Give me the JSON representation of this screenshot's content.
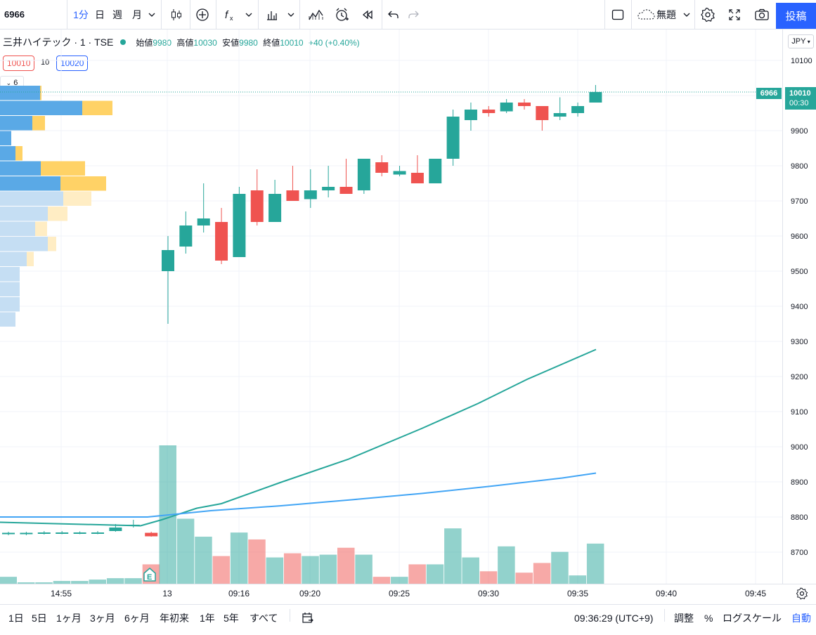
{
  "toolbar": {
    "symbol": "6966",
    "intervals": [
      "1分",
      "日",
      "週",
      "月"
    ],
    "cloud_label": "無題",
    "post_label": "投稿"
  },
  "legend": {
    "title": "三井ハイテック · 1 · TSE",
    "open_label": "始値",
    "open": "9980",
    "high_label": "高値",
    "high": "10030",
    "low_label": "安値",
    "low": "9980",
    "close_label": "終値",
    "close": "10010",
    "change": "+40 (+0.40%)"
  },
  "bid": "10010",
  "spread": "10",
  "ask": "10020",
  "volume_profile_count": "6",
  "currency": "JPY",
  "price_tag": {
    "symbol": "6966",
    "price": "10010",
    "countdown": "00:30"
  },
  "bottom": {
    "ranges": [
      "1日",
      "5日",
      "1ヶ月",
      "3ヶ月",
      "6ヶ月",
      "年初来",
      "1年",
      "5年",
      "すべて"
    ],
    "time": "09:36:29 (UTC+9)",
    "adjust": "調整",
    "percent": "%",
    "log": "ログスケール",
    "auto": "自動"
  },
  "colors": {
    "up": "#26a69a",
    "down": "#ef5350",
    "ma_fast": "#26a69a",
    "ma_slow": "#42a5f5",
    "accent": "#2962ff"
  },
  "chart_data": {
    "type": "candlestick",
    "x_tick_labels": [
      "14:55",
      "13",
      "09:16",
      "09:20",
      "09:25",
      "09:30",
      "09:35",
      "09:40",
      "09:45"
    ],
    "y_tick_labels": [
      "10100",
      "10000",
      "9900",
      "9800",
      "9700",
      "9600",
      "9500",
      "9400",
      "9300",
      "9200",
      "9100",
      "9000",
      "8900",
      "8800",
      "8700"
    ],
    "ylim": [
      8610,
      10190
    ],
    "candles": [
      {
        "o": 8752,
        "h": 8758,
        "l": 8748,
        "c": 8755
      },
      {
        "o": 8752,
        "h": 8758,
        "l": 8748,
        "c": 8755
      },
      {
        "o": 8754,
        "h": 8760,
        "l": 8750,
        "c": 8756
      },
      {
        "o": 8755,
        "h": 8760,
        "l": 8751,
        "c": 8756
      },
      {
        "o": 8755,
        "h": 8759,
        "l": 8751,
        "c": 8756
      },
      {
        "o": 8755,
        "h": 8760,
        "l": 8751,
        "c": 8756
      },
      {
        "o": 8760,
        "h": 8780,
        "l": 8758,
        "c": 8770
      },
      {
        "o": 8775,
        "h": 8792,
        "l": 8770,
        "c": 8778
      },
      {
        "o": 8755,
        "h": 8758,
        "l": 8744,
        "c": 8745
      },
      {
        "o": 9500,
        "h": 9600,
        "l": 9350,
        "c": 9560
      },
      {
        "o": 9570,
        "h": 9670,
        "l": 9550,
        "c": 9630
      },
      {
        "o": 9630,
        "h": 9750,
        "l": 9610,
        "c": 9650
      },
      {
        "o": 9640,
        "h": 9680,
        "l": 9520,
        "c": 9530
      },
      {
        "o": 9540,
        "h": 9740,
        "l": 9540,
        "c": 9720
      },
      {
        "o": 9730,
        "h": 9790,
        "l": 9630,
        "c": 9640
      },
      {
        "o": 9640,
        "h": 9760,
        "l": 9640,
        "c": 9720
      },
      {
        "o": 9730,
        "h": 9800,
        "l": 9700,
        "c": 9700
      },
      {
        "o": 9705,
        "h": 9790,
        "l": 9680,
        "c": 9730
      },
      {
        "o": 9730,
        "h": 9800,
        "l": 9710,
        "c": 9740
      },
      {
        "o": 9740,
        "h": 9820,
        "l": 9720,
        "c": 9720
      },
      {
        "o": 9730,
        "h": 9820,
        "l": 9720,
        "c": 9820
      },
      {
        "o": 9810,
        "h": 9830,
        "l": 9770,
        "c": 9780
      },
      {
        "o": 9775,
        "h": 9800,
        "l": 9770,
        "c": 9785
      },
      {
        "o": 9780,
        "h": 9830,
        "l": 9750,
        "c": 9750
      },
      {
        "o": 9750,
        "h": 9820,
        "l": 9750,
        "c": 9820
      },
      {
        "o": 9820,
        "h": 9960,
        "l": 9800,
        "c": 9940
      },
      {
        "o": 9930,
        "h": 9980,
        "l": 9900,
        "c": 9960
      },
      {
        "o": 9960,
        "h": 9970,
        "l": 9940,
        "c": 9950
      },
      {
        "o": 9955,
        "h": 9990,
        "l": 9950,
        "c": 9980
      },
      {
        "o": 9980,
        "h": 9990,
        "l": 9960,
        "c": 9970
      },
      {
        "o": 9970,
        "h": 9970,
        "l": 9900,
        "c": 9930
      },
      {
        "o": 9940,
        "h": 9995,
        "l": 9930,
        "c": 9950
      },
      {
        "o": 9950,
        "h": 9980,
        "l": 9940,
        "c": 9970
      },
      {
        "o": 9980,
        "h": 10030,
        "l": 9980,
        "c": 10010
      }
    ],
    "volume_rel": [
      0.05,
      0.01,
      0.01,
      0.02,
      0.02,
      0.03,
      0.04,
      0.04,
      0.14,
      1.0,
      0.47,
      0.34,
      0.2,
      0.37,
      0.32,
      0.19,
      0.22,
      0.2,
      0.21,
      0.26,
      0.21,
      0.05,
      0.05,
      0.14,
      0.14,
      0.4,
      0.19,
      0.09,
      0.27,
      0.08,
      0.15,
      0.23,
      0.06,
      0.29
    ],
    "ma_fast": [
      [
        0,
        8785
      ],
      [
        200,
        8775
      ],
      [
        230,
        8792
      ],
      [
        280,
        8825
      ],
      [
        315,
        8838
      ],
      [
        400,
        8899
      ],
      [
        495,
        8964
      ],
      [
        600,
        9052
      ],
      [
        680,
        9123
      ],
      [
        750,
        9192
      ],
      [
        848,
        9277
      ]
    ],
    "ma_slow": [
      [
        0,
        8800
      ],
      [
        210,
        8800
      ],
      [
        250,
        8808
      ],
      [
        300,
        8818
      ],
      [
        400,
        8832
      ],
      [
        500,
        8849
      ],
      [
        600,
        8867
      ],
      [
        700,
        8888
      ],
      [
        800,
        8911
      ],
      [
        848,
        8925
      ]
    ],
    "volume_profile": [
      {
        "u": 57,
        "d": 2,
        "active": true
      },
      {
        "u": 117,
        "d": 43,
        "active": true
      },
      {
        "u": 46,
        "d": 18,
        "active": true
      },
      {
        "u": 16,
        "d": 0,
        "active": true
      },
      {
        "u": 22,
        "d": 10,
        "active": true
      },
      {
        "u": 58,
        "d": 63,
        "active": true
      },
      {
        "u": 86,
        "d": 65,
        "active": true
      },
      {
        "u": 90,
        "d": 40,
        "active": false
      },
      {
        "u": 68,
        "d": 28,
        "active": false
      },
      {
        "u": 50,
        "d": 17,
        "active": false
      },
      {
        "u": 68,
        "d": 12,
        "active": false
      },
      {
        "u": 38,
        "d": 10,
        "active": false
      },
      {
        "u": 28,
        "d": 0,
        "active": false
      },
      {
        "u": 28,
        "d": 0,
        "active": false
      },
      {
        "u": 28,
        "d": 0,
        "active": false
      },
      {
        "u": 22,
        "d": 0,
        "active": false
      }
    ]
  }
}
